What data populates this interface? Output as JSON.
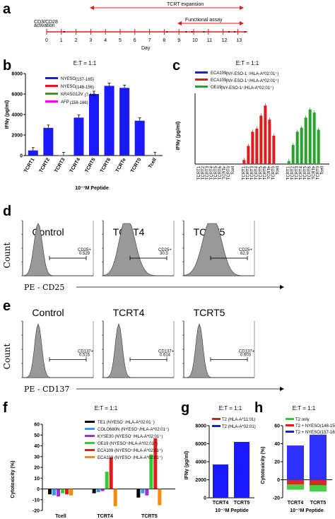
{
  "panel_labels": {
    "a": "a",
    "b": "b",
    "c": "c",
    "d": "d",
    "e": "e",
    "f": "f",
    "g": "g",
    "h": "h"
  },
  "panel_a": {
    "activation_label_1": "CD3/CD28",
    "activation_label_2": "activation",
    "tcrt_expansion": "TCRT expansion",
    "functional_assay": "Functional assay",
    "xlabel": "Day",
    "days": [
      "0",
      "1",
      "2",
      "3",
      "4",
      "5",
      "6",
      "7",
      "8",
      "9",
      "10",
      "11",
      "12",
      "13"
    ]
  },
  "et_ratio": "E:T = 1:1",
  "chart_data": [
    {
      "panel": "b",
      "type": "bar",
      "title": "E:T = 1:1",
      "ylabel": "IFNγ (pg/ml)",
      "xlabel": "10⁻⁷M Peptide",
      "ylim": [
        0,
        8000
      ],
      "yticks": [
        "0",
        "2000",
        "4000",
        "6000",
        "8000"
      ],
      "categories": [
        "TCRT1",
        "TCRT2",
        "TCRT3",
        "TCRT4",
        "TCRT5",
        "TCRT6",
        "TCRTe",
        "TCRT0",
        "Tcell"
      ],
      "values": [
        500,
        2700,
        30,
        3700,
        6000,
        6800,
        6600,
        3400,
        50
      ],
      "colors": [
        "#1a1aff",
        "#1a1aff",
        "#e41a1c",
        "#1a1aff",
        "#1a1aff",
        "#1a1aff",
        "#1a1aff",
        "#1a1aff",
        "#ff00ff"
      ],
      "legend": [
        {
          "name": "NYESO",
          "sub": "(157-165)",
          "color": "#1a1aff"
        },
        {
          "name": "NYESO",
          "sub": "(148-156)",
          "color": "#e41a1c"
        },
        {
          "name": "KRASG12V",
          "sub": "(7-16)",
          "color": "#2ca02c"
        },
        {
          "name": "AFP",
          "sub": "(158-166)",
          "color": "#ff00ff"
        }
      ]
    },
    {
      "panel": "c",
      "type": "bar",
      "title": "E:T = 1:1",
      "ylabel": "IFNγ (pg/ml)",
      "legend": [
        {
          "name": "ECA109",
          "sub": "(NY-ESO-1⁻/HLA-A*02:01⁺)",
          "color": "#1a1aff"
        },
        {
          "name": "ECA109",
          "sub": "(NY-ESO-1⁺/HLA-A*02:01⁺)",
          "color": "#e41a1c"
        },
        {
          "name": "OE19",
          "sub": "(NY-ESO-1⁺/HLA-A*02:01⁺)",
          "color": "#2ca02c"
        }
      ],
      "categories": [
        "TCRT1",
        "TCRT2",
        "TCRT3",
        "TCRT4",
        "TCRT5",
        "TCRT6",
        "TCRTe",
        "TCRT0",
        "Tcell"
      ],
      "series": [
        {
          "values": [
            0,
            0,
            0,
            0,
            0,
            0,
            0,
            0,
            0
          ],
          "color": "#1a1aff"
        },
        {
          "values": [
            400,
            1800,
            3200,
            3500,
            4800,
            5800,
            4400,
            2800,
            0
          ],
          "color": "#e41a1c"
        },
        {
          "values": [
            300,
            1900,
            3200,
            3600,
            4600,
            5400,
            5100,
            3400,
            0
          ],
          "color": "#2ca02c"
        }
      ],
      "ylim": [
        0,
        7000
      ]
    },
    {
      "panel": "f",
      "type": "bar",
      "title": "E:T = 1:1",
      "ylabel": "Cytotoxicity (%)",
      "ylim": [
        -20,
        60
      ],
      "yticks": [
        "-20",
        "-10",
        "0",
        "10",
        "20",
        "30",
        "40",
        "50",
        "60"
      ],
      "categories": [
        "Tcell",
        "TCRT4",
        "TCRT5"
      ],
      "series": [
        {
          "name": "TE1 (NYESO⁻/HLA-A*02:01⁻)",
          "color": "#000000",
          "values": [
            -5,
            -4,
            -8
          ]
        },
        {
          "name": "COLO680N (NYESO⁻/HLA-A*02:01⁺)",
          "color": "#3399ff",
          "values": [
            -6,
            -3,
            -4
          ]
        },
        {
          "name": "KYSE30 (NYESO⁻/HLA-A*02:01⁺)",
          "color": "#9933cc",
          "values": [
            -7,
            -2,
            -6
          ]
        },
        {
          "name": "OE19 (NYESO⁺/HLA-A*02:01⁺)",
          "color": "#33cc33",
          "values": [
            -4,
            16,
            32
          ]
        },
        {
          "name": "ECA109 (NYESO⁺/HLA-A*02:01⁺)",
          "color": "#e41a1c",
          "values": [
            -5,
            29,
            47
          ]
        },
        {
          "name": "ECA109 (NYESO⁻/HLA-A*02:01⁺)",
          "color": "#ff8c00",
          "values": [
            -6,
            -16,
            -15
          ]
        }
      ]
    },
    {
      "panel": "g",
      "type": "bar",
      "title": "E:T = 1:1",
      "ylabel": "IFNγ (pg/ml)",
      "xlabel": "10⁻⁷M Peptide",
      "ylim": [
        0,
        8000
      ],
      "yticks": [
        "0",
        "2000",
        "4000",
        "6000",
        "8000"
      ],
      "categories": [
        "TCRT4",
        "TCRT5"
      ],
      "series": [
        {
          "name": "T2 (HLA-A*11:01)",
          "color": "#e41a1c",
          "values": [
            0,
            0
          ]
        },
        {
          "name": "T2 (HLA-A*02:01)",
          "color": "#1a1aff",
          "values": [
            3700,
            6200
          ]
        }
      ]
    },
    {
      "panel": "h",
      "type": "bar",
      "title": "E:T = 1:1",
      "ylabel": "Cytotoxicity (%)",
      "xlabel": "10⁻⁷M Peptide",
      "ylim": [
        -20,
        60
      ],
      "yticks": [
        "-20",
        "0",
        "20",
        "40",
        "60"
      ],
      "categories": [
        "TCRT4",
        "TCRT5"
      ],
      "series": [
        {
          "name": "T2 only",
          "color": "#33cc33",
          "values": [
            -11,
            -13
          ]
        },
        {
          "name": "T2 + NYESO(148-156)",
          "color": "#e41a1c",
          "values": [
            -5,
            -6
          ]
        },
        {
          "name": "T2 + NYESO(157-165)",
          "color": "#1a1aff",
          "values": [
            38,
            50
          ]
        }
      ]
    }
  ],
  "panel_d": {
    "titles": [
      "Control",
      "TCRT4",
      "TCRT5"
    ],
    "gate_label": "CD25+",
    "gate_values": [
      "0.529",
      "30.3",
      "62.9"
    ],
    "ylabel": "Count",
    "xlabel": "PE - CD25"
  },
  "panel_e": {
    "titles": [
      "Control",
      "TCRT4",
      "TCRT5"
    ],
    "gate_label": "CD137+",
    "gate_values": [
      "0.515",
      "0.614",
      "0.603"
    ],
    "ylabel": "Count",
    "xlabel": "PE - CD137"
  }
}
